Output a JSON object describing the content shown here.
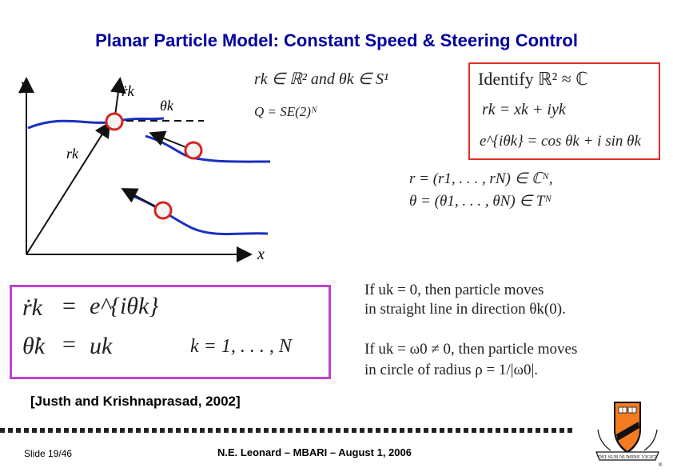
{
  "title": "Planar Particle Model:  Constant Speed & Steering Control",
  "diagram": {
    "y_label": "y",
    "x_label": "x",
    "rdot_label": "ṙk",
    "theta_label": "θk",
    "r_label": "rk"
  },
  "equations": {
    "state_space": "rk ∈ ℝ² and θk ∈ S¹",
    "config_space": "Q = SE(2)ᴺ",
    "identify_title": "Identify ℝ² ≈ ℂ",
    "identify_r": "rk = xk + iyk",
    "identify_e": "e^{iθk} = cos θk + i sin θk",
    "vector_r": "r = (r1, . . . , rN) ∈ ℂᴺ,",
    "vector_theta": "θ = (θ1, . . . , θN) ∈ Tᴺ"
  },
  "dynamics": {
    "eq1_lhs": "ṙk",
    "eq1_rhs": "e^{iθk}",
    "eq2_lhs": "θ̇k",
    "eq2_rhs": "uk",
    "index_range": "k = 1, . . . , N"
  },
  "notes": {
    "straight_1": "If uk = 0, then particle moves",
    "straight_2": "in straight line in direction θk(0).",
    "circle_1": "If uk = ω0 ≠ 0, then particle moves",
    "circle_2": "in circle of radius ρ = 1/|ω0|."
  },
  "citation": "[Justh and Krishnaprasad, 2002]",
  "footer": {
    "slide": "Slide 19/46",
    "center": "N.E. Leonard – MBARI –  August 1, 2006"
  },
  "seal_motto": "DEI SUB NUMINE VIGET"
}
